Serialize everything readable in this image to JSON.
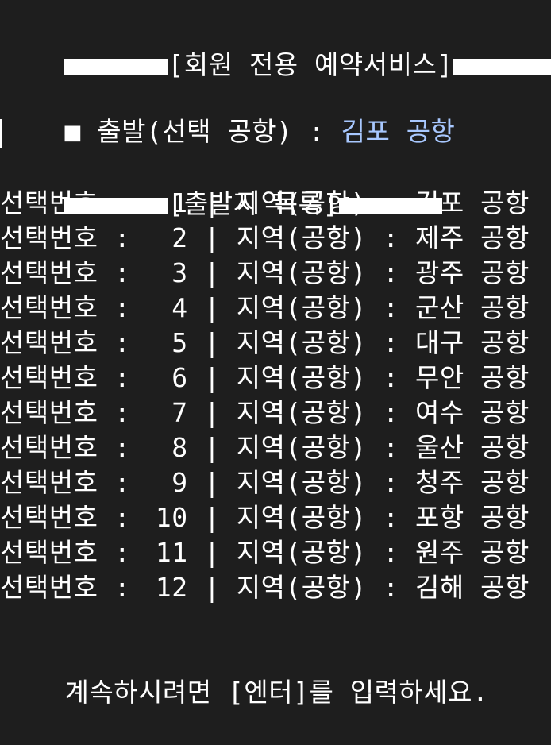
{
  "colors": {
    "background": "#1e1e1e",
    "text": "#ffffff",
    "accent": "#a8c8ff"
  },
  "header": {
    "title": "[회원 전용 예약서비스]"
  },
  "departure": {
    "bullet_icon": "square-bullet",
    "label": "출발(선택 공항) : ",
    "value": "김포 공항"
  },
  "list": {
    "title": "[출발지 목록]",
    "label_prefix": "선택번호",
    "label_separator": ":",
    "divider": "|",
    "region_label": "지역(공항)",
    "items": [
      {
        "number": "1",
        "airport": "김포 공항"
      },
      {
        "number": "2",
        "airport": "제주 공항"
      },
      {
        "number": "3",
        "airport": "광주 공항"
      },
      {
        "number": "4",
        "airport": "군산 공항"
      },
      {
        "number": "5",
        "airport": "대구 공항"
      },
      {
        "number": "6",
        "airport": "무안 공항"
      },
      {
        "number": "7",
        "airport": "여수 공항"
      },
      {
        "number": "8",
        "airport": "울산 공항"
      },
      {
        "number": "9",
        "airport": "청주 공항"
      },
      {
        "number": "10",
        "airport": "포항 공항"
      },
      {
        "number": "11",
        "airport": "원주 공항"
      },
      {
        "number": "12",
        "airport": "김해 공항"
      }
    ]
  },
  "footer": {
    "prompt": "계속하시려면 [엔터]를 입력하세요."
  }
}
